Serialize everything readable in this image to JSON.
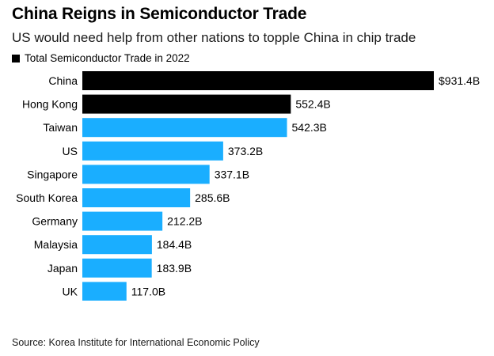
{
  "title": "China Reigns in Semiconductor Trade",
  "subtitle": "US would need help from other nations to topple China in chip trade",
  "legend": {
    "label": "Total Semiconductor Trade in 2022",
    "color": "#000000"
  },
  "source": "Source: Korea Institute for International Economic Policy",
  "colors": {
    "highlight": "#000000",
    "default": "#1aaeff"
  },
  "chart_data": {
    "type": "bar",
    "orientation": "horizontal",
    "categories": [
      "China",
      "Hong Kong",
      "Taiwan",
      "US",
      "Singapore",
      "South Korea",
      "Germany",
      "Malaysia",
      "Japan",
      "UK"
    ],
    "values": [
      931.4,
      552.4,
      542.3,
      373.2,
      337.1,
      285.6,
      212.2,
      184.4,
      183.9,
      117.0
    ],
    "labels": [
      "$931.4B",
      "552.4B",
      "542.3B",
      "373.2B",
      "337.1B",
      "285.6B",
      "212.2B",
      "184.4B",
      "183.9B",
      "117.0B"
    ],
    "highlighted": [
      "China",
      "Hong Kong"
    ],
    "title": "China Reigns in Semiconductor Trade",
    "xlabel": "",
    "ylabel": "",
    "xlim": [
      0,
      931.4
    ],
    "grid": false,
    "legend_position": "top-left"
  }
}
